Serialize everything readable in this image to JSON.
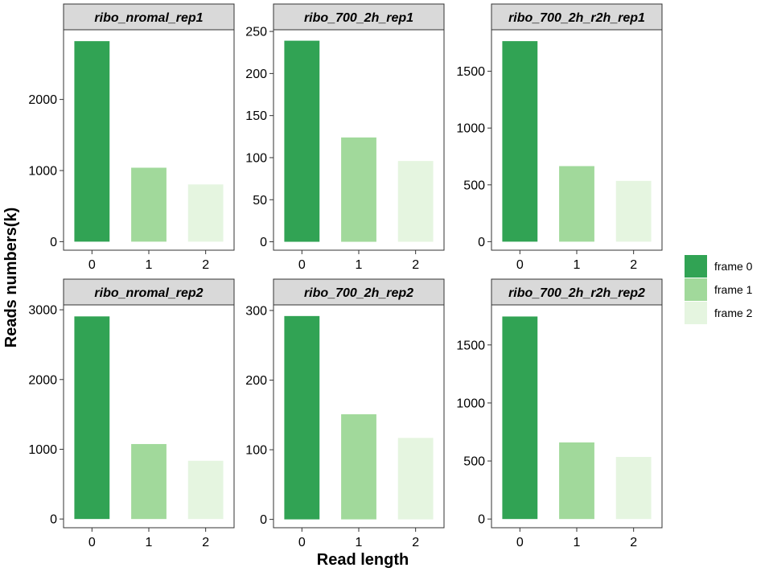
{
  "chart_data": {
    "type": "bar",
    "xlabel": "Read length",
    "ylabel": "Reads numbers(k)",
    "categories": [
      "0",
      "1",
      "2"
    ],
    "legend": {
      "position": "right",
      "entries": [
        {
          "label": "frame 0",
          "color": "#31a354"
        },
        {
          "label": "frame 1",
          "color": "#a1d99b"
        },
        {
          "label": "frame 2",
          "color": "#e5f5e0"
        }
      ]
    },
    "grid": false,
    "panels": [
      {
        "title": "ribo_nromal_rep1",
        "values": [
          2820,
          1040,
          805
        ],
        "ylim": [
          -120,
          2980
        ],
        "yticks": [
          0,
          1000,
          2000
        ]
      },
      {
        "title": "ribo_700_2h_rep1",
        "values": [
          239,
          124,
          96
        ],
        "ylim": [
          -10,
          252
        ],
        "yticks": [
          0,
          50,
          100,
          150,
          200,
          250
        ]
      },
      {
        "title": "ribo_700_2h_r2h_rep1",
        "values": [
          1765,
          665,
          535
        ],
        "ylim": [
          -75,
          1865
        ],
        "yticks": [
          0,
          500,
          1000,
          1500
        ]
      },
      {
        "title": "ribo_nromal_rep2",
        "values": [
          2905,
          1075,
          835
        ],
        "ylim": [
          -125,
          3070
        ],
        "yticks": [
          0,
          1000,
          2000,
          3000
        ]
      },
      {
        "title": "ribo_700_2h_rep2",
        "values": [
          292,
          151,
          117
        ],
        "ylim": [
          -12,
          308
        ],
        "yticks": [
          0,
          100,
          200,
          300
        ]
      },
      {
        "title": "ribo_700_2h_r2h_rep2",
        "values": [
          1745,
          660,
          535
        ],
        "ylim": [
          -75,
          1845
        ],
        "yticks": [
          0,
          500,
          1000,
          1500
        ]
      }
    ]
  }
}
